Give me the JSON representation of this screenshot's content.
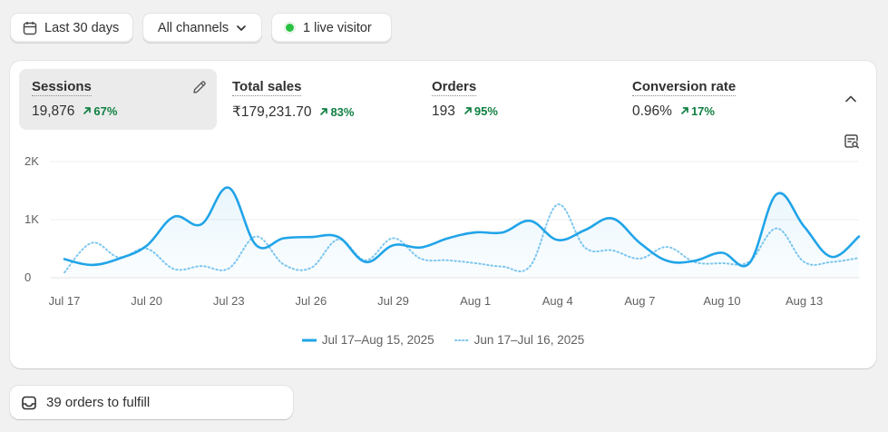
{
  "filters": {
    "date_label": "Last 30 days",
    "channels_label": "All channels",
    "live_label": "1 live visitor"
  },
  "metrics": [
    {
      "label": "Sessions",
      "value": "19,876",
      "change": "67%"
    },
    {
      "label": "Total sales",
      "value": "₹179,231.70",
      "change": "83%"
    },
    {
      "label": "Orders",
      "value": "193",
      "change": "95%"
    },
    {
      "label": "Conversion rate",
      "value": "0.96%",
      "change": "17%"
    }
  ],
  "chart_data": {
    "type": "line",
    "ylim": [
      0,
      2000
    ],
    "y_ticks": [
      "2K",
      "1K",
      "0"
    ],
    "x_tick_labels": [
      "Jul 17",
      "Jul 20",
      "Jul 23",
      "Jul 26",
      "Jul 29",
      "Aug 1",
      "Aug 4",
      "Aug 7",
      "Aug 10",
      "Aug 13"
    ],
    "grid": true,
    "legend_position": "bottom",
    "series": [
      {
        "name": "Jul 17–Aug 15, 2025",
        "style": "solid",
        "color": "#21a4e8",
        "values": [
          320,
          220,
          330,
          550,
          1050,
          920,
          1550,
          560,
          680,
          700,
          700,
          270,
          560,
          520,
          680,
          780,
          780,
          980,
          650,
          820,
          1020,
          600,
          290,
          290,
          430,
          250,
          1440,
          880,
          360,
          710
        ]
      },
      {
        "name": "Jun 17–Jul 16, 2025",
        "style": "dotted",
        "color": "#7fc7ee",
        "values": [
          90,
          600,
          350,
          500,
          150,
          200,
          160,
          710,
          230,
          170,
          660,
          300,
          680,
          330,
          300,
          250,
          190,
          200,
          1260,
          520,
          470,
          330,
          530,
          270,
          250,
          280,
          850,
          270,
          270,
          340
        ]
      }
    ]
  },
  "footer": {
    "fulfill_label": "39 orders to fulfill"
  },
  "colors": {
    "accent_line": "#21a4e8",
    "positive_change": "#108043",
    "live_dot": "#29c142"
  }
}
